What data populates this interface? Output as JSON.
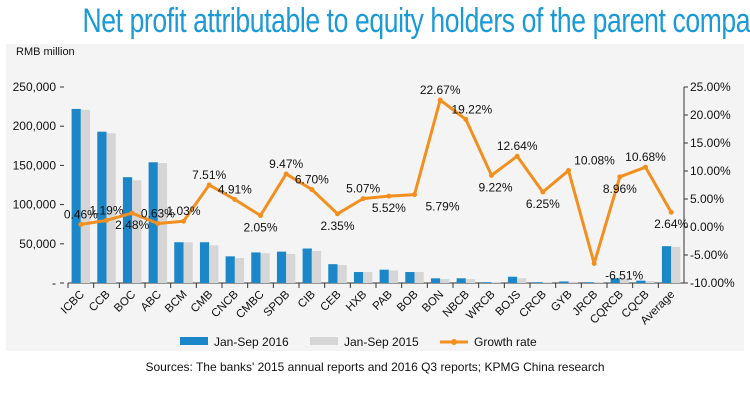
{
  "title": "Net profit attributable to equity holders of the parent company",
  "source": "Sources: The banks' 2015 annual reports and 2016 Q3 reports; KPMG China research",
  "chart_data": {
    "type": "bar+line",
    "ylabel": "RMB million",
    "ylim": [
      0,
      250000
    ],
    "y_ticks": [
      "-",
      "50,000",
      "100,000",
      "150,000",
      "200,000",
      "250,000"
    ],
    "y2lim": [
      -10,
      25
    ],
    "y2_ticks": [
      "-10.00%",
      "-5.00%",
      "0.00%",
      "5.00%",
      "10.00%",
      "15.00%",
      "20.00%",
      "25.00%"
    ],
    "categories": [
      "ICBC",
      "CCB",
      "BOC",
      "ABC",
      "BCM",
      "CMB",
      "CNCB",
      "CMBC",
      "SPDB",
      "CIB",
      "CEB",
      "HXB",
      "PAB",
      "BOB",
      "BON",
      "NBCB",
      "WRCB",
      "BOJS",
      "CRCB",
      "GYB",
      "JRCB",
      "CQRCB",
      "CQCB",
      "Average"
    ],
    "series": [
      {
        "name": "Jan-Sep 2016",
        "type": "bar",
        "color": "#1b87c9",
        "values": [
          222000,
          193000,
          135000,
          154000,
          52000,
          52000,
          34000,
          39000,
          40000,
          44000,
          24000,
          14000,
          17000,
          14000,
          6000,
          6000,
          1000,
          8000,
          1000,
          2000,
          1000,
          6000,
          3000,
          47000
        ]
      },
      {
        "name": "Jan-Sep 2015",
        "type": "bar",
        "color": "#d6d6d6",
        "values": [
          221000,
          191000,
          131000,
          153000,
          52000,
          48000,
          32000,
          38000,
          37000,
          41000,
          23000,
          14000,
          16000,
          14000,
          5000,
          5000,
          1000,
          6000,
          1000,
          1500,
          1000,
          5000,
          2500,
          46000
        ]
      },
      {
        "name": "Growth rate",
        "type": "line",
        "axis": "right",
        "color": "#f28f1e",
        "values": [
          0.46,
          1.19,
          2.48,
          0.63,
          1.03,
          7.51,
          4.91,
          2.05,
          9.47,
          6.7,
          2.35,
          5.07,
          5.52,
          5.79,
          22.67,
          19.22,
          9.22,
          12.64,
          6.25,
          10.08,
          -6.51,
          8.96,
          10.68,
          2.64
        ],
        "labels": [
          "0.46%",
          "1.19%",
          "2.48%",
          "0.63%",
          "1.03%",
          "7.51%",
          "4.91%",
          "2.05%",
          "9.47%",
          "6.70%",
          "2.35%",
          "5.07%",
          "5.52%",
          "5.79%",
          "22.67%",
          "19.22%",
          "9.22%",
          "12.64%",
          "6.25%",
          "10.08%",
          "-6.51%",
          "8.96%",
          "10.68%",
          "2.64%"
        ]
      }
    ],
    "legend": "bottom"
  }
}
